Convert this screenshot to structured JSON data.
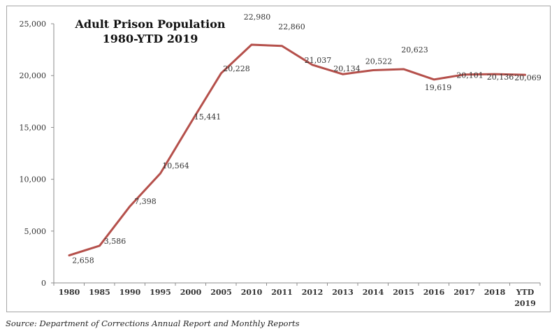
{
  "chart_data": {
    "type": "line",
    "title": "Adult Prison Population",
    "subtitle": "1980-YTD 2019",
    "xlabel": "",
    "ylabel": "",
    "categories": [
      "1980",
      "1985",
      "1990",
      "1995",
      "2000",
      "2005",
      "2010",
      "2011",
      "2012",
      "2013",
      "2014",
      "2015",
      "2016",
      "2017",
      "2018",
      "YTD 2019"
    ],
    "series": [
      {
        "name": "Adult Prison Population",
        "values": [
          2658,
          3586,
          7398,
          10564,
          15441,
          20228,
          22980,
          22860,
          21037,
          20134,
          20522,
          20623,
          19619,
          20101,
          20136,
          20069
        ],
        "labels": [
          "2,658",
          "3,586",
          "7,398",
          "10,564",
          "15,441",
          "20,228",
          "22,980",
          "22,860",
          "21,037",
          "20,134",
          "20,522",
          "20,623",
          "19,619",
          "20,101",
          "20,136",
          "20,069"
        ],
        "color": "#b5504b"
      }
    ],
    "ylim": [
      0,
      25000
    ],
    "yticks": [
      0,
      5000,
      10000,
      15000,
      20000,
      25000
    ],
    "ytick_labels": [
      "0",
      "5,000",
      "10,000",
      "15,000",
      "20,000",
      "25,000"
    ],
    "xtick_labels": [
      [
        "1980"
      ],
      [
        "1985"
      ],
      [
        "1990"
      ],
      [
        "1995"
      ],
      [
        "2000"
      ],
      [
        "2005"
      ],
      [
        "2010"
      ],
      [
        "2011"
      ],
      [
        "2012"
      ],
      [
        "2013"
      ],
      [
        "2014"
      ],
      [
        "2015"
      ],
      [
        "2016"
      ],
      [
        "2017"
      ],
      [
        "2018"
      ],
      [
        "YTD",
        "2019"
      ]
    ],
    "grid": false,
    "legend": "none"
  },
  "source": "Source:  Department of Corrections Annual Report and Monthly Reports"
}
